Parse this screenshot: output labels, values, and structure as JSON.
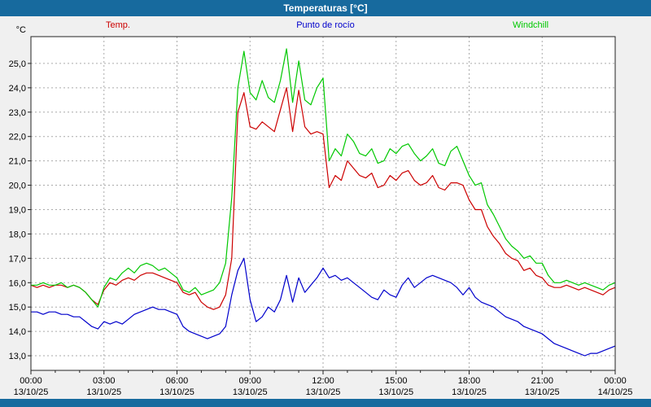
{
  "window": {
    "title": "Temperaturas [°C]"
  },
  "colors": {
    "bar": "#176a9e",
    "background": "#f0f0f0",
    "plot_border": "#222222"
  },
  "legend": [
    {
      "label": "Temp.",
      "color": "#cc0000"
    },
    {
      "label": "Punto de rocío",
      "color": "#0000cc"
    },
    {
      "label": "Windchill",
      "color": "#00c800"
    }
  ],
  "chart_data": {
    "type": "line",
    "title": "Temperaturas [°C]",
    "xlabel": "",
    "ylabel": "°C",
    "grid": true,
    "grid_color": "#aaaaaa",
    "legend_position": "top",
    "ylim": [
      12.4,
      26.1
    ],
    "x_range": [
      0,
      24
    ],
    "x_start": 0,
    "x_step_hours": 0.25,
    "y_ticks": [
      25,
      24,
      23,
      22,
      21,
      20,
      19,
      18,
      17,
      16,
      15,
      14,
      13
    ],
    "y_tick_labels": [
      "25,0",
      "24,0",
      "23,0",
      "22,0",
      "21,0",
      "20,0",
      "19,0",
      "18,0",
      "17,0",
      "16,0",
      "15,0",
      "14,0",
      "13,0"
    ],
    "x_ticks": [
      0,
      3,
      6,
      9,
      12,
      15,
      18,
      21,
      24
    ],
    "x_tick_labels": [
      "00:00",
      "03:00",
      "06:00",
      "09:00",
      "12:00",
      "15:00",
      "18:00",
      "21:00",
      "00:00"
    ],
    "x_tick_dates": [
      "13/10/25",
      "13/10/25",
      "13/10/25",
      "13/10/25",
      "13/10/25",
      "13/10/25",
      "13/10/25",
      "13/10/25",
      "14/10/25"
    ],
    "series": [
      {
        "name": "Temp.",
        "key": "temp",
        "color": "#cc0000",
        "values": [
          15.9,
          15.8,
          15.9,
          15.8,
          15.9,
          15.9,
          15.8,
          15.9,
          15.8,
          15.6,
          15.3,
          15.1,
          15.7,
          16.0,
          15.9,
          16.1,
          16.2,
          16.1,
          16.3,
          16.4,
          16.4,
          16.3,
          16.2,
          16.1,
          16.0,
          15.6,
          15.5,
          15.6,
          15.2,
          15.0,
          14.9,
          15.0,
          15.5,
          17.0,
          23.0,
          23.8,
          22.4,
          22.3,
          22.6,
          22.4,
          22.2,
          23.1,
          24.0,
          22.2,
          23.9,
          22.4,
          22.1,
          22.2,
          22.1,
          19.9,
          20.4,
          20.2,
          21.0,
          20.7,
          20.4,
          20.3,
          20.5,
          19.9,
          20.0,
          20.4,
          20.2,
          20.5,
          20.6,
          20.2,
          20.0,
          20.1,
          20.4,
          19.9,
          19.8,
          20.1,
          20.1,
          20.0,
          19.4,
          19.0,
          19.0,
          18.3,
          17.9,
          17.6,
          17.2,
          17.0,
          16.9,
          16.5,
          16.6,
          16.3,
          16.2,
          15.9,
          15.8,
          15.8,
          15.9,
          15.8,
          15.7,
          15.8,
          15.7,
          15.6,
          15.5,
          15.7,
          15.8
        ]
      },
      {
        "name": "Punto de rocío",
        "key": "dew-point",
        "color": "#0000cc",
        "values": [
          14.8,
          14.8,
          14.7,
          14.8,
          14.8,
          14.7,
          14.7,
          14.6,
          14.6,
          14.4,
          14.2,
          14.1,
          14.4,
          14.3,
          14.4,
          14.3,
          14.5,
          14.7,
          14.8,
          14.9,
          15.0,
          14.9,
          14.9,
          14.8,
          14.7,
          14.2,
          14.0,
          13.9,
          13.8,
          13.7,
          13.8,
          13.9,
          14.2,
          15.5,
          16.5,
          17.0,
          15.3,
          14.4,
          14.6,
          15.0,
          14.8,
          15.3,
          16.3,
          15.2,
          16.2,
          15.6,
          15.9,
          16.2,
          16.6,
          16.2,
          16.3,
          16.1,
          16.2,
          16.0,
          15.8,
          15.6,
          15.4,
          15.3,
          15.7,
          15.5,
          15.4,
          15.9,
          16.2,
          15.8,
          16.0,
          16.2,
          16.3,
          16.2,
          16.1,
          16.0,
          15.8,
          15.5,
          15.8,
          15.4,
          15.2,
          15.1,
          15.0,
          14.8,
          14.6,
          14.5,
          14.4,
          14.2,
          14.1,
          14.0,
          13.9,
          13.7,
          13.5,
          13.4,
          13.3,
          13.2,
          13.1,
          13.0,
          13.1,
          13.1,
          13.2,
          13.3,
          13.4
        ]
      },
      {
        "name": "Windchill",
        "key": "windchill",
        "color": "#00c800",
        "values": [
          15.9,
          15.9,
          16.0,
          15.9,
          15.9,
          16.0,
          15.8,
          15.9,
          15.8,
          15.6,
          15.3,
          15.0,
          15.8,
          16.2,
          16.1,
          16.4,
          16.6,
          16.4,
          16.7,
          16.8,
          16.7,
          16.5,
          16.6,
          16.4,
          16.2,
          15.7,
          15.6,
          15.8,
          15.5,
          15.6,
          15.7,
          16.0,
          16.8,
          19.5,
          24.0,
          25.5,
          23.8,
          23.5,
          24.3,
          23.6,
          23.4,
          24.3,
          25.6,
          23.4,
          25.1,
          23.5,
          23.3,
          24.0,
          24.4,
          21.0,
          21.5,
          21.2,
          22.1,
          21.8,
          21.3,
          21.2,
          21.5,
          20.9,
          21.0,
          21.5,
          21.3,
          21.6,
          21.7,
          21.3,
          21.0,
          21.2,
          21.5,
          20.9,
          20.8,
          21.4,
          21.6,
          21.0,
          20.4,
          20.0,
          20.1,
          19.2,
          18.8,
          18.3,
          17.8,
          17.5,
          17.3,
          17.0,
          17.1,
          16.8,
          16.8,
          16.3,
          16.0,
          16.0,
          16.1,
          16.0,
          15.9,
          16.0,
          15.9,
          15.8,
          15.7,
          15.9,
          16.0
        ]
      }
    ]
  }
}
